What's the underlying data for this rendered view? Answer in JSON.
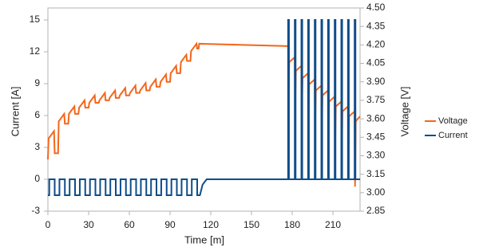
{
  "chart_data": {
    "type": "line",
    "x_label": "Time [m]",
    "y_label": "Current [A]",
    "y2_label": "Voltage [V]",
    "xlim": [
      0,
      230
    ],
    "xticks": [
      0,
      30,
      60,
      90,
      120,
      150,
      180,
      210
    ],
    "ylim": [
      -3,
      16.125
    ],
    "yticks": [
      -3,
      0,
      3,
      6,
      9,
      12,
      15
    ],
    "y2lim": [
      2.85,
      4.5
    ],
    "y2ticks": [
      2.85,
      {
        "value": 3.0,
        "label": "3.00"
      },
      3.15,
      {
        "value": 3.3,
        "label": "3.30"
      },
      3.45,
      {
        "value": 3.6,
        "label": "3.60"
      },
      3.75,
      {
        "value": 3.9,
        "label": "3.90"
      },
      4.05,
      {
        "value": 4.2,
        "label": "4.20"
      },
      4.35,
      {
        "value": 4.5,
        "label": "4.50"
      }
    ],
    "grid": false,
    "legend": "right",
    "series": [
      {
        "name": "Voltage",
        "color": "#f4661b",
        "axis": "y2",
        "x": [
          0,
          0.5,
          4.5,
          5,
          7.5,
          8,
          12,
          12.5,
          15,
          15.5,
          19.5,
          20,
          22.5,
          23,
          27,
          27.5,
          30,
          30.5,
          34.5,
          35,
          37.5,
          38,
          42,
          42.5,
          45,
          45.5,
          49.5,
          50,
          52.5,
          53,
          57,
          57.5,
          60,
          60.5,
          64.5,
          65,
          67.5,
          68,
          72,
          72.5,
          75,
          75.5,
          79.5,
          80,
          82.5,
          83,
          87,
          87.5,
          90,
          90.5,
          94.5,
          95,
          97.5,
          98,
          102,
          102.5,
          105,
          105.5,
          109.5,
          110,
          111,
          111.5,
          177,
          177.3,
          177.8,
          181.9,
          182.2,
          182.7,
          186.8,
          187.1,
          187.6,
          191.7,
          192,
          192.5,
          196.6,
          196.9,
          197.4,
          201.5,
          201.8,
          202.3,
          206.4,
          206.7,
          207.2,
          211.3,
          211.6,
          212.1,
          216.2,
          216.5,
          217,
          221.1,
          221.4,
          221.9,
          226,
          226.3,
          226.8,
          230
        ],
        "values": [
          3.27,
          3.44,
          3.5,
          3.32,
          3.32,
          3.58,
          3.64,
          3.56,
          3.56,
          3.64,
          3.7,
          3.64,
          3.64,
          3.69,
          3.75,
          3.69,
          3.69,
          3.73,
          3.79,
          3.73,
          3.73,
          3.75,
          3.81,
          3.75,
          3.75,
          3.77,
          3.83,
          3.77,
          3.77,
          3.79,
          3.85,
          3.79,
          3.79,
          3.81,
          3.87,
          3.81,
          3.81,
          3.83,
          3.89,
          3.83,
          3.83,
          3.86,
          3.92,
          3.86,
          3.86,
          3.9,
          3.96,
          3.9,
          3.9,
          3.97,
          4.03,
          3.97,
          3.97,
          4.06,
          4.12,
          4.07,
          4.07,
          4.15,
          4.21,
          4.17,
          4.17,
          4.21,
          4.19,
          3.78,
          4.06,
          4.1,
          3.72,
          3.99,
          4.03,
          3.65,
          3.93,
          3.97,
          3.58,
          3.88,
          3.92,
          3.52,
          3.83,
          3.87,
          3.45,
          3.79,
          3.83,
          3.39,
          3.74,
          3.78,
          3.33,
          3.7,
          3.74,
          3.27,
          3.66,
          3.7,
          3.2,
          3.62,
          3.66,
          3.05,
          3.58,
          3.62
        ]
      },
      {
        "name": "Current",
        "color": "#0e4d8a",
        "x": [
          0,
          1,
          1,
          5,
          5,
          8.5,
          8.5,
          12.5,
          12.5,
          16,
          16,
          20,
          20,
          23.5,
          23.5,
          27.5,
          27.5,
          31,
          31,
          35,
          35,
          38.5,
          38.5,
          42.5,
          42.5,
          46,
          46,
          50,
          50,
          53.5,
          53.5,
          57.5,
          57.5,
          61,
          61,
          65,
          65,
          68.5,
          68.5,
          72.5,
          72.5,
          76,
          76,
          80,
          80,
          83.5,
          83.5,
          87.5,
          87.5,
          91,
          91,
          95,
          95,
          98.5,
          98.5,
          102.5,
          102.5,
          106,
          106,
          110,
          110,
          112,
          114,
          117,
          177,
          177,
          177.6,
          177.6,
          181.9,
          181.9,
          182.5,
          182.5,
          186.8,
          186.8,
          187.4,
          187.4,
          191.7,
          191.7,
          192.3,
          192.3,
          196.6,
          196.6,
          197.2,
          197.2,
          201.5,
          201.5,
          202.1,
          202.1,
          206.4,
          206.4,
          207,
          207,
          211.3,
          211.3,
          211.9,
          211.9,
          216.2,
          216.2,
          216.8,
          216.8,
          221.1,
          221.1,
          221.7,
          221.7,
          226,
          226,
          226.6,
          226.6,
          230
        ],
        "values": [
          -1.5,
          -1.5,
          0,
          0,
          -1.5,
          -1.5,
          0,
          0,
          -1.5,
          -1.5,
          0,
          0,
          -1.5,
          -1.5,
          0,
          0,
          -1.5,
          -1.5,
          0,
          0,
          -1.5,
          -1.5,
          0,
          0,
          -1.5,
          -1.5,
          0,
          0,
          -1.5,
          -1.5,
          0,
          0,
          -1.5,
          -1.5,
          0,
          0,
          -1.5,
          -1.5,
          0,
          0,
          -1.5,
          -1.5,
          0,
          0,
          -1.5,
          -1.5,
          0,
          0,
          -1.5,
          -1.5,
          0,
          0,
          -1.5,
          -1.5,
          0,
          0,
          -1.5,
          -1.5,
          0,
          0,
          -1.5,
          -1.5,
          -0.5,
          0,
          0,
          15,
          15,
          0,
          0,
          15,
          15,
          0,
          0,
          15,
          15,
          0,
          0,
          15,
          15,
          0,
          0,
          15,
          15,
          0,
          0,
          15,
          15,
          0,
          0,
          15,
          15,
          0,
          0,
          15,
          15,
          0,
          0,
          15,
          15,
          0,
          0,
          15,
          15,
          0,
          0,
          15,
          15,
          0,
          0
        ]
      }
    ]
  }
}
